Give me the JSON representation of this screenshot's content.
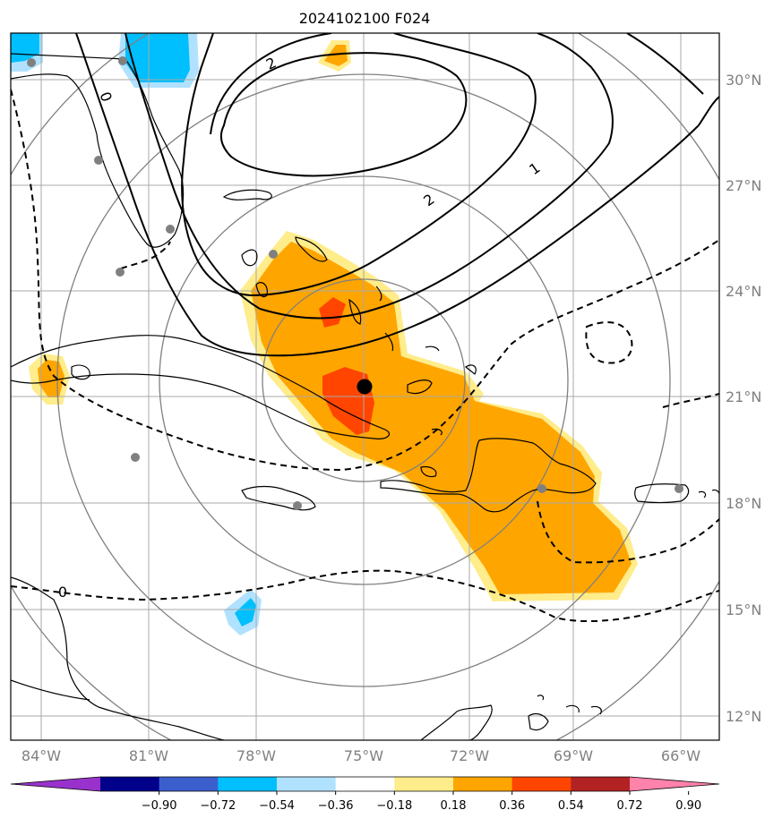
{
  "title": "2024102100 F024",
  "lat_labels": [
    "30°N",
    "27°N",
    "24°N",
    "21°N",
    "18°N",
    "15°N",
    "12°N"
  ],
  "lon_labels": [
    "84°W",
    "81°W",
    "78°W",
    "75°W",
    "72°W",
    "69°W",
    "66°W"
  ],
  "colorbar": {
    "tick_labels": [
      "−0.90",
      "−0.72",
      "−0.54",
      "−0.36",
      "−0.18",
      "0.18",
      "0.36",
      "0.54",
      "0.72",
      "0.90"
    ],
    "colors": [
      "#9932cc",
      "#00008b",
      "#3a5fcd",
      "#00bfff",
      "#b0e2ff",
      "#ffffff",
      "#ffec8b",
      "#ffa500",
      "#ff4500",
      "#b22222",
      "#ff82ab"
    ]
  },
  "contour_labels": [
    "2",
    "0",
    "2",
    "1",
    "0"
  ],
  "colors": {
    "grid": "#a9a9a9",
    "range_rings": "#808080",
    "coast": "#000000",
    "center_marker": "#000000",
    "station": "#808080"
  }
}
